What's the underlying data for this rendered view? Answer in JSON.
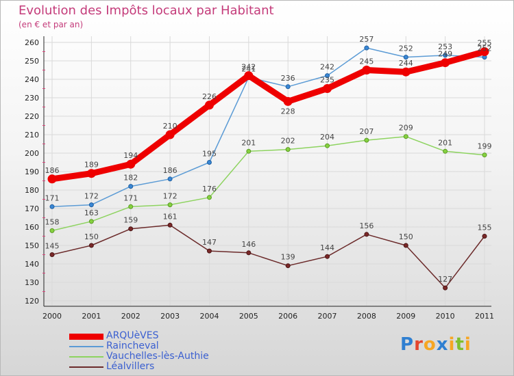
{
  "header": {
    "title": "Evolution des Impôts locaux par Habitant",
    "subtitle": "(en € et par an)"
  },
  "brand": {
    "logo_text": "Proxiti"
  },
  "chart_data": {
    "type": "line",
    "title": "Evolution des Impôts locaux par Habitant",
    "subtitle": "(en € et par an)",
    "xlabel": "",
    "ylabel": "",
    "x": [
      "2000",
      "2001",
      "2002",
      "2003",
      "2004",
      "2005",
      "2006",
      "2007",
      "2008",
      "2009",
      "2010",
      "2011"
    ],
    "ylim": [
      120,
      260
    ],
    "yticks": [
      120,
      130,
      140,
      150,
      160,
      170,
      180,
      190,
      200,
      210,
      220,
      230,
      240,
      250,
      260
    ],
    "grid": true,
    "legend_position": "bottom-left",
    "series": [
      {
        "name": "ARQUèVES",
        "color": "#ee0000",
        "values": [
          186,
          189,
          194,
          210,
          226,
          242,
          228,
          235,
          245,
          244,
          249,
          255
        ]
      },
      {
        "name": "Raincheval",
        "color": "#5b9bd5",
        "values": [
          171,
          172,
          182,
          186,
          195,
          241,
          236,
          242,
          257,
          252,
          253,
          252
        ]
      },
      {
        "name": "Vauchelles-lès-Authie",
        "color": "#8dd35f",
        "values": [
          158,
          163,
          171,
          172,
          176,
          201,
          202,
          204,
          207,
          209,
          201,
          199
        ]
      },
      {
        "name": "Léalvillers",
        "color": "#6b2a2a",
        "values": [
          145,
          150,
          159,
          161,
          147,
          146,
          139,
          144,
          156,
          150,
          127,
          155
        ]
      }
    ]
  }
}
